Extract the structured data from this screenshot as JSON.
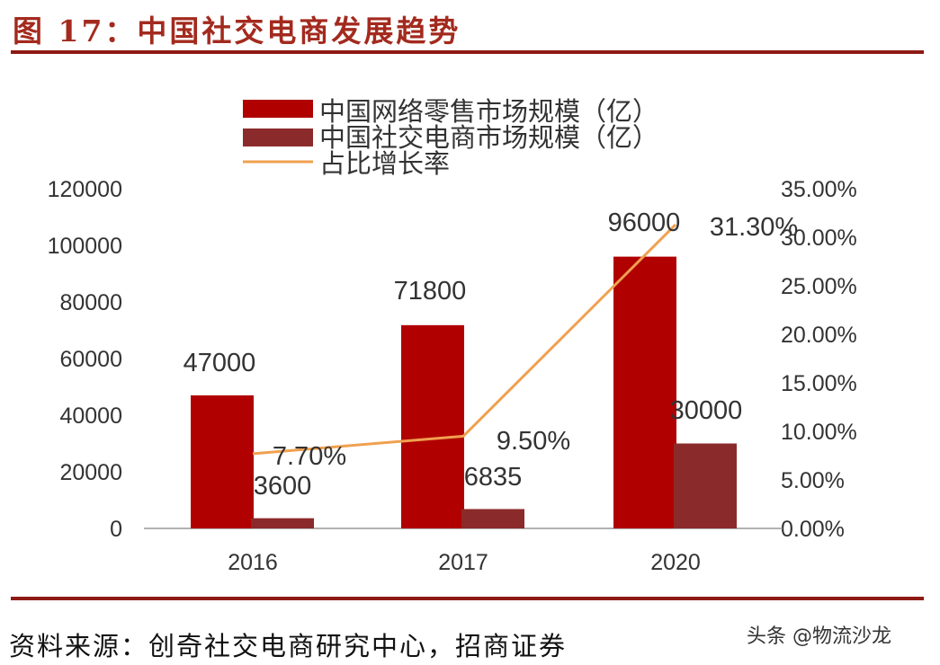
{
  "title": "图 17：中国社交电商发展趋势",
  "source": "资料来源：创奇社交电商研究中心，招商证券",
  "watermark": "头条 @物流沙龙",
  "colors": {
    "retail": "#b00000",
    "social": "#8b2a2a",
    "ratio": "#f0a050",
    "title": "#a32a1e",
    "rule": "#8e1a14"
  },
  "chart_data": {
    "type": "bar+line",
    "categories": [
      "2016",
      "2017",
      "2020"
    ],
    "series": [
      {
        "name": "中国网络零售市场规模（亿）",
        "type": "bar",
        "axis": "left",
        "values": [
          47000,
          71800,
          96000
        ],
        "labels": [
          "47000",
          "71800",
          "96000"
        ]
      },
      {
        "name": "中国社交电商市场规模（亿）",
        "type": "bar",
        "axis": "left",
        "values": [
          3600,
          6835,
          30000
        ],
        "labels": [
          "3600",
          "6835",
          "30000"
        ]
      },
      {
        "name": "占比增长率",
        "type": "line",
        "axis": "right",
        "values": [
          7.7,
          9.5,
          31.3
        ],
        "labels": [
          "7.70%",
          "9.50%",
          "31.30%"
        ]
      }
    ],
    "left_axis": {
      "range": [
        0,
        120000
      ],
      "ticks": [
        "0",
        "20000",
        "40000",
        "60000",
        "80000",
        "100000",
        "120000"
      ]
    },
    "right_axis": {
      "range": [
        0,
        35
      ],
      "ticks": [
        "0.00%",
        "5.00%",
        "10.00%",
        "15.00%",
        "20.00%",
        "25.00%",
        "30.00%",
        "35.00%"
      ]
    },
    "legend": "top",
    "grid": false
  }
}
